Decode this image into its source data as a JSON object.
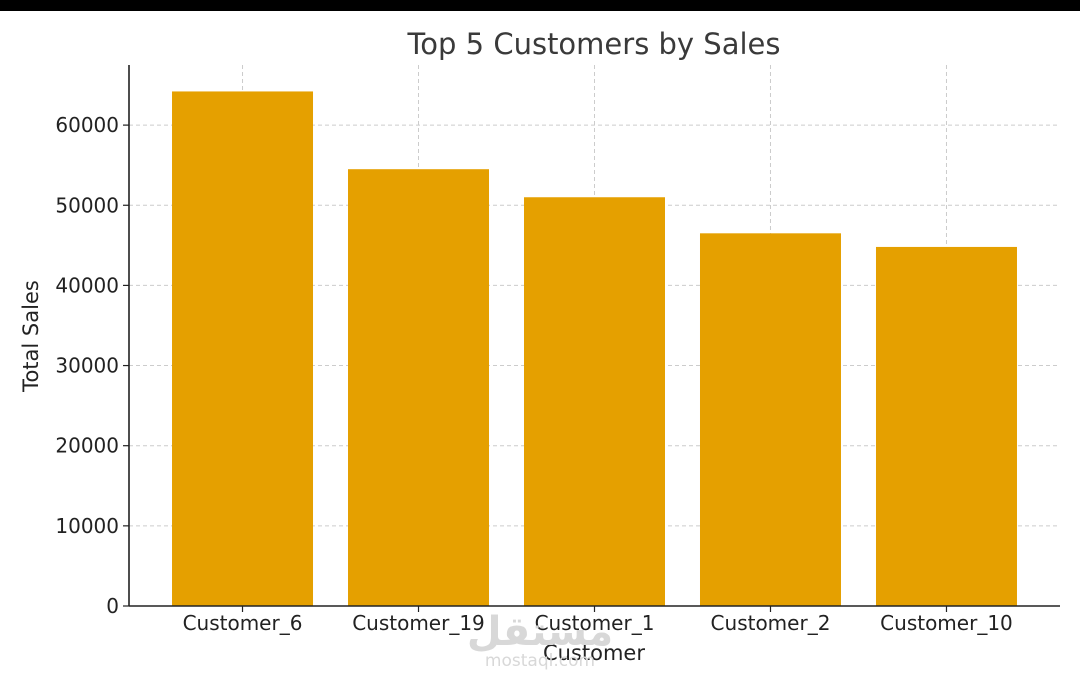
{
  "chart_data": {
    "type": "bar",
    "title": "Top 5 Customers by Sales",
    "xlabel": "Customer",
    "ylabel": "Total Sales",
    "categories": [
      "Customer_6",
      "Customer_19",
      "Customer_1",
      "Customer_2",
      "Customer_10"
    ],
    "values": [
      64200,
      54500,
      51000,
      46500,
      44800
    ],
    "ylim": [
      0,
      67500
    ],
    "yticks": [
      0,
      10000,
      20000,
      30000,
      40000,
      50000,
      60000
    ],
    "grid": true,
    "bar_color": "#e5a000"
  },
  "watermark": {
    "arabic": "مستقل",
    "latin": "mostaql.com"
  }
}
